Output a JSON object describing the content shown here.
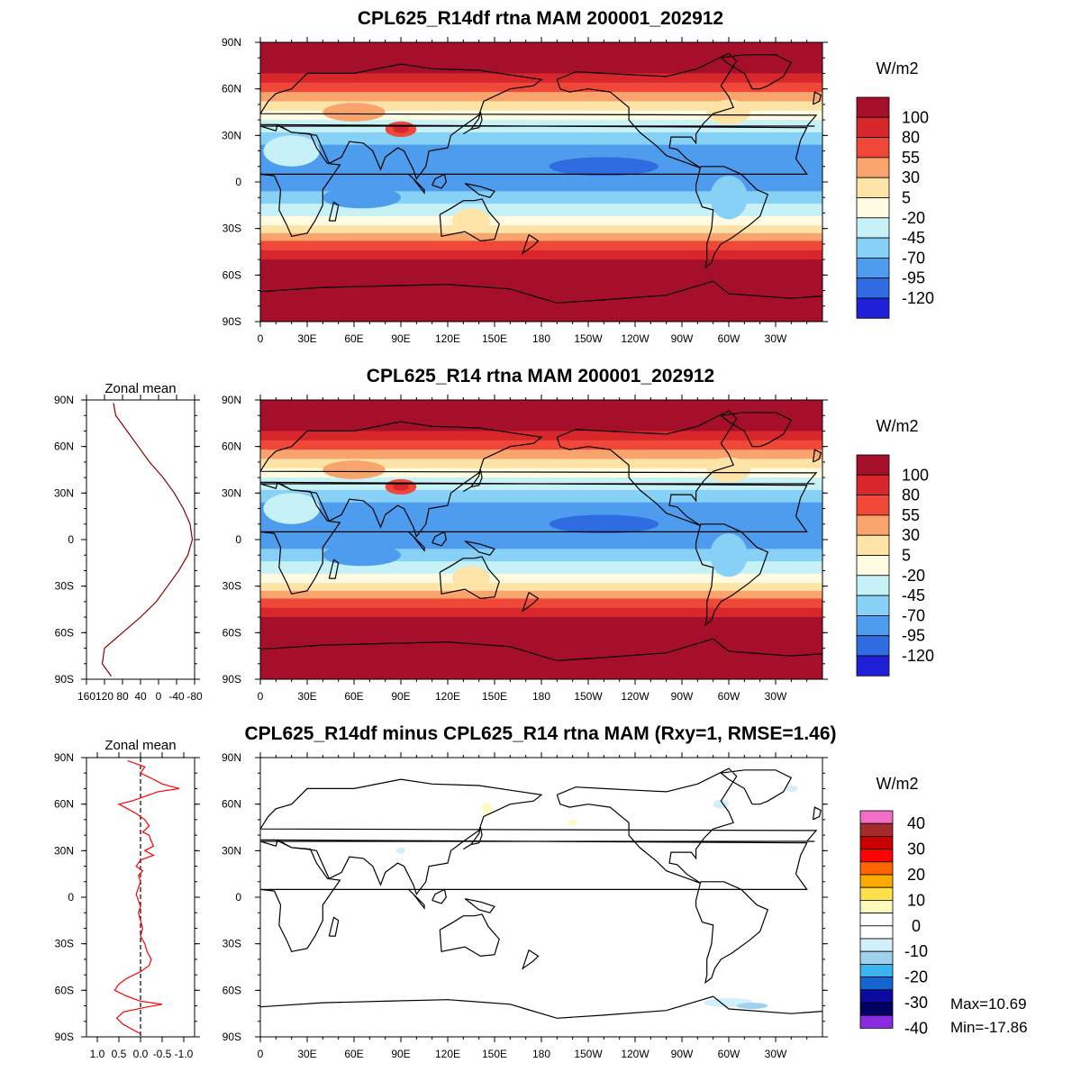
{
  "chart_data": [
    {
      "type": "heatmap",
      "title": "CPL625_R14df rtna MAM 200001_202912",
      "x_ticks": [
        "0",
        "30E",
        "60E",
        "90E",
        "120E",
        "150E",
        "180",
        "150W",
        "120W",
        "90W",
        "60W",
        "30W"
      ],
      "y_ticks": [
        "90N",
        "60N",
        "30N",
        "0",
        "30S",
        "60S",
        "90S"
      ],
      "colorbar": {
        "unit": "W/m2",
        "labels": [
          "100",
          "80",
          "55",
          "30",
          "5",
          "-20",
          "-45",
          "-70",
          "-95",
          "-120"
        ],
        "colors": [
          "#a50f2a",
          "#d7262c",
          "#f04838",
          "#f9a46c",
          "#fde3a6",
          "#fffbe0",
          "#c6f2f7",
          "#86d1f5",
          "#4e9ced",
          "#2f6be1",
          "#2020d8"
        ]
      },
      "zonal_band_values": [
        {
          "lat": 75,
          "value": 100
        },
        {
          "lat": 60,
          "value": 80
        },
        {
          "lat": 45,
          "value": 5
        },
        {
          "lat": 30,
          "value": -45
        },
        {
          "lat": 15,
          "value": -95
        },
        {
          "lat": 0,
          "value": -95
        },
        {
          "lat": -15,
          "value": -70
        },
        {
          "lat": -30,
          "value": -20
        },
        {
          "lat": -45,
          "value": 55
        },
        {
          "lat": -60,
          "value": 100
        },
        {
          "lat": -75,
          "value": 100
        }
      ]
    },
    {
      "type": "heatmap",
      "title": "CPL625_R14 rtna MAM 200001_202912",
      "x_ticks": [
        "0",
        "30E",
        "60E",
        "90E",
        "120E",
        "150E",
        "180",
        "150W",
        "120W",
        "90W",
        "60W",
        "30W"
      ],
      "y_ticks": [
        "90N",
        "60N",
        "30N",
        "0",
        "30S",
        "60S",
        "90S"
      ],
      "colorbar": {
        "unit": "W/m2",
        "labels": [
          "100",
          "80",
          "55",
          "30",
          "5",
          "-20",
          "-45",
          "-70",
          "-95",
          "-120"
        ],
        "colors": [
          "#a50f2a",
          "#d7262c",
          "#f04838",
          "#f9a46c",
          "#fde3a6",
          "#fffbe0",
          "#c6f2f7",
          "#86d1f5",
          "#4e9ced",
          "#2f6be1",
          "#2020d8"
        ]
      }
    },
    {
      "type": "line",
      "title": "Zonal mean",
      "x_ticks": [
        "160",
        "120",
        "80",
        "40",
        "0",
        "-40",
        "-80"
      ],
      "y_ticks": [
        "90N",
        "60N",
        "30N",
        "0",
        "30S",
        "60S",
        "90S"
      ],
      "xlim": [
        160,
        -80
      ],
      "ylim": [
        -90,
        90
      ],
      "series": [
        {
          "color": "#8b0000",
          "points": [
            [
              88,
              100
            ],
            [
              80,
              95
            ],
            [
              70,
              70
            ],
            [
              60,
              45
            ],
            [
              50,
              20
            ],
            [
              40,
              -10
            ],
            [
              30,
              -35
            ],
            [
              20,
              -55
            ],
            [
              10,
              -70
            ],
            [
              0,
              -75
            ],
            [
              -10,
              -65
            ],
            [
              -20,
              -45
            ],
            [
              -30,
              -20
            ],
            [
              -40,
              5
            ],
            [
              -50,
              40
            ],
            [
              -60,
              80
            ],
            [
              -70,
              120
            ],
            [
              -80,
              125
            ],
            [
              -88,
              105
            ]
          ]
        }
      ]
    },
    {
      "type": "heatmap",
      "title": "CPL625_R14df minus CPL625_R14 rtna MAM (Rxy=1, RMSE=1.46)",
      "x_ticks": [
        "0",
        "30E",
        "60E",
        "90E",
        "120E",
        "150E",
        "180",
        "150W",
        "120W",
        "90W",
        "60W",
        "30W"
      ],
      "y_ticks": [
        "90N",
        "60N",
        "30N",
        "0",
        "30S",
        "60S",
        "90S"
      ],
      "colorbar": {
        "unit": "W/m2",
        "labels": [
          "40",
          "30",
          "20",
          "10",
          "0",
          "-10",
          "-20",
          "-30",
          "-40"
        ],
        "colors": [
          "#f06ec8",
          "#a52a2a",
          "#c80000",
          "#ff0000",
          "#ff6600",
          "#ffaa00",
          "#ffe14b",
          "#fffabe",
          "#ffffff",
          "#ffffff",
          "#d2f0fa",
          "#a0d2f0",
          "#3cb4f0",
          "#1464d2",
          "#0a0aa0",
          "#000064",
          "#8a2be2"
        ]
      },
      "stats": {
        "max": "Max=10.69",
        "min": "Min=-17.86"
      }
    },
    {
      "type": "line",
      "title": "Zonal mean",
      "x_ticks": [
        "1.0",
        "0.5",
        "0.0",
        "-0.5",
        "-1.0"
      ],
      "y_ticks": [
        "90N",
        "60N",
        "30N",
        "0",
        "30S",
        "60S",
        "90S"
      ],
      "xlim": [
        1.25,
        -1.25
      ],
      "ylim": [
        -90,
        90
      ],
      "reference_line": 0.0,
      "series": [
        {
          "color": "#ff0000",
          "points": [
            [
              88,
              0.3
            ],
            [
              84,
              -0.1
            ],
            [
              80,
              0.0
            ],
            [
              76,
              -0.3
            ],
            [
              73,
              -0.5
            ],
            [
              70,
              -0.9
            ],
            [
              68,
              -0.4
            ],
            [
              65,
              -0.1
            ],
            [
              62,
              0.2
            ],
            [
              60,
              0.5
            ],
            [
              57,
              0.3
            ],
            [
              54,
              0.1
            ],
            [
              50,
              -0.1
            ],
            [
              46,
              -0.2
            ],
            [
              42,
              -0.05
            ],
            [
              40,
              -0.2
            ],
            [
              36,
              -0.25
            ],
            [
              33,
              -0.3
            ],
            [
              30,
              -0.1
            ],
            [
              27,
              -0.3
            ],
            [
              24,
              0.0
            ],
            [
              20,
              0.1
            ],
            [
              17,
              -0.05
            ],
            [
              14,
              0.05
            ],
            [
              10,
              0.0
            ],
            [
              6,
              0.05
            ],
            [
              2,
              0.1
            ],
            [
              -2,
              0.05
            ],
            [
              -6,
              0.0
            ],
            [
              -10,
              0.05
            ],
            [
              -15,
              0.0
            ],
            [
              -20,
              -0.05
            ],
            [
              -25,
              0.0
            ],
            [
              -30,
              -0.1
            ],
            [
              -35,
              -0.15
            ],
            [
              -40,
              -0.25
            ],
            [
              -44,
              -0.2
            ],
            [
              -48,
              0.0
            ],
            [
              -52,
              0.3
            ],
            [
              -56,
              0.5
            ],
            [
              -60,
              0.6
            ],
            [
              -64,
              0.3
            ],
            [
              -67,
              0.0
            ],
            [
              -69,
              -0.5
            ],
            [
              -71,
              -0.1
            ],
            [
              -74,
              0.4
            ],
            [
              -78,
              0.55
            ],
            [
              -82,
              0.4
            ],
            [
              -85,
              0.2
            ],
            [
              -88,
              0.0
            ]
          ]
        }
      ]
    }
  ]
}
